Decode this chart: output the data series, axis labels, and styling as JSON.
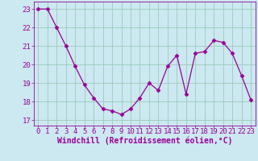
{
  "x": [
    0,
    1,
    2,
    3,
    4,
    5,
    6,
    7,
    8,
    9,
    10,
    11,
    12,
    13,
    14,
    15,
    16,
    17,
    18,
    19,
    20,
    21,
    22,
    23
  ],
  "y": [
    23.0,
    23.0,
    22.0,
    21.0,
    19.9,
    18.9,
    18.2,
    17.6,
    17.5,
    17.3,
    17.6,
    18.2,
    19.0,
    18.6,
    19.9,
    20.5,
    18.4,
    20.6,
    20.7,
    21.3,
    21.2,
    20.6,
    19.4,
    18.1
  ],
  "line_color": "#990099",
  "marker": "D",
  "marker_size": 2.5,
  "bg_color": "#cce8f0",
  "grid_color": "#99ccbb",
  "xlabel": "Windchill (Refroidissement éolien,°C)",
  "xlabel_color": "#990099",
  "xlabel_fontsize": 7,
  "tick_color": "#990099",
  "tick_fontsize": 6.5,
  "yticks": [
    17,
    18,
    19,
    20,
    21,
    22,
    23
  ],
  "ylim": [
    16.7,
    23.4
  ],
  "xlim": [
    -0.5,
    23.5
  ],
  "xtick_labels": [
    "0",
    "1",
    "2",
    "3",
    "4",
    "5",
    "6",
    "7",
    "8",
    "9",
    "10",
    "11",
    "12",
    "13",
    "14",
    "15",
    "16",
    "17",
    "18",
    "19",
    "20",
    "21",
    "22",
    "23"
  ]
}
